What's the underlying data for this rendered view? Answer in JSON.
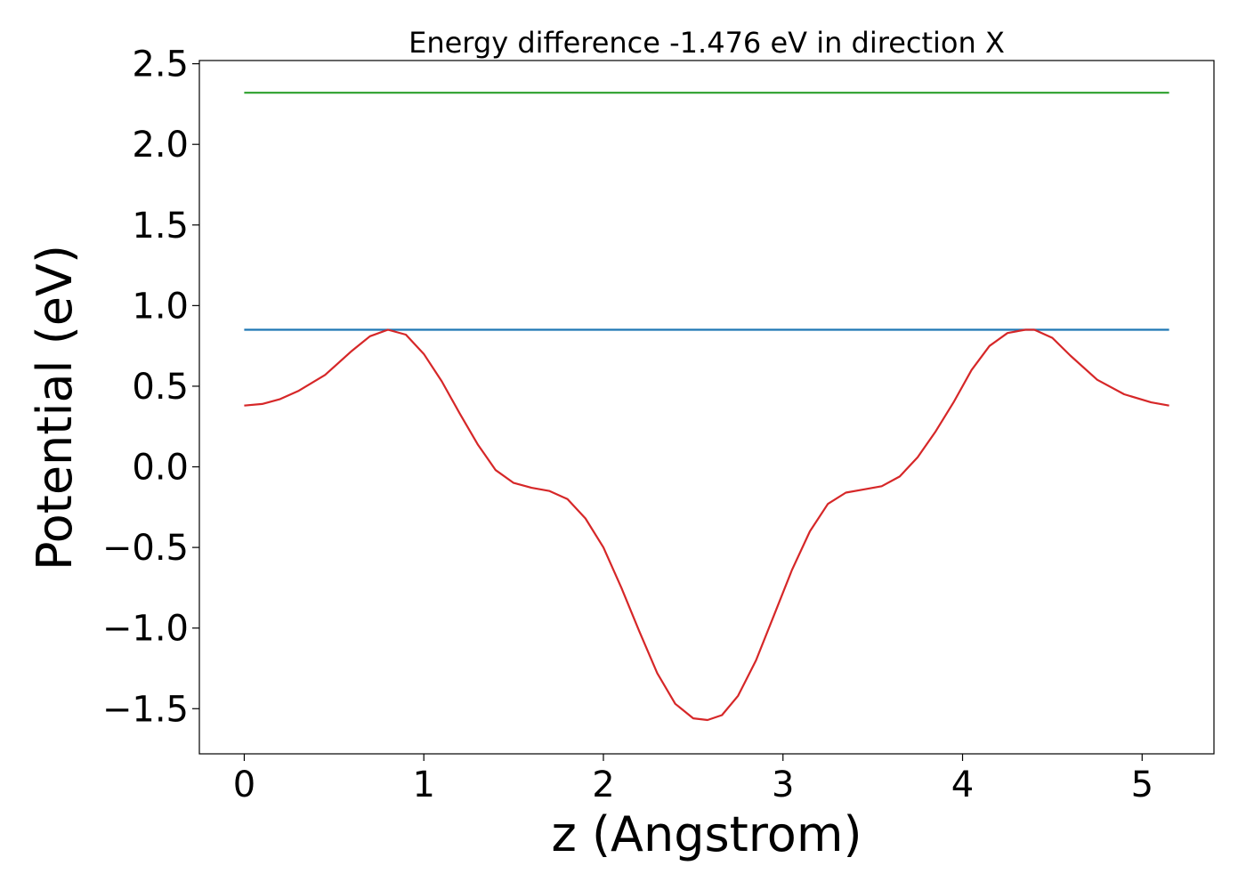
{
  "chart_data": {
    "type": "line",
    "title": "Energy difference -1.476 eV in direction X",
    "xlabel": "z (Angstrom)",
    "ylabel": "Potential (eV)",
    "xlim": [
      -0.25,
      5.4
    ],
    "ylim": [
      -1.78,
      2.52
    ],
    "xticks": [
      0,
      1,
      2,
      3,
      4,
      5
    ],
    "xtick_labels": [
      "0",
      "1",
      "2",
      "3",
      "4",
      "5"
    ],
    "yticks": [
      -1.5,
      -1.0,
      -0.5,
      0.0,
      0.5,
      1.0,
      1.5,
      2.0,
      2.5
    ],
    "ytick_labels": [
      "−1.5",
      "−1.0",
      "−0.5",
      "0.0",
      "0.5",
      "1.0",
      "1.5",
      "2.0",
      "2.5"
    ],
    "grid": false,
    "series": [
      {
        "color": "#2ca02c",
        "x": [
          0,
          5.15
        ],
        "y": [
          2.32,
          2.32
        ]
      },
      {
        "color": "#1f77b4",
        "x": [
          0,
          5.15
        ],
        "y": [
          0.85,
          0.85
        ]
      },
      {
        "color": "#d62728",
        "x": [
          0,
          0.1,
          0.2,
          0.3,
          0.45,
          0.6,
          0.7,
          0.8,
          0.9,
          1.0,
          1.1,
          1.2,
          1.3,
          1.4,
          1.5,
          1.6,
          1.7,
          1.8,
          1.9,
          2.0,
          2.1,
          2.2,
          2.3,
          2.4,
          2.5,
          2.58,
          2.66,
          2.75,
          2.85,
          2.95,
          3.05,
          3.15,
          3.25,
          3.35,
          3.45,
          3.55,
          3.65,
          3.75,
          3.85,
          3.95,
          4.05,
          4.15,
          4.25,
          4.35,
          4.4,
          4.5,
          4.6,
          4.75,
          4.9,
          5.05,
          5.15
        ],
        "y": [
          0.38,
          0.39,
          0.42,
          0.47,
          0.57,
          0.72,
          0.81,
          0.85,
          0.82,
          0.7,
          0.53,
          0.33,
          0.14,
          -0.02,
          -0.1,
          -0.13,
          -0.15,
          -0.2,
          -0.32,
          -0.5,
          -0.75,
          -1.02,
          -1.28,
          -1.47,
          -1.56,
          -1.57,
          -1.54,
          -1.42,
          -1.2,
          -0.92,
          -0.64,
          -0.4,
          -0.23,
          -0.16,
          -0.14,
          -0.12,
          -0.06,
          0.06,
          0.22,
          0.4,
          0.6,
          0.75,
          0.83,
          0.85,
          0.85,
          0.8,
          0.69,
          0.54,
          0.45,
          0.4,
          0.38
        ]
      }
    ]
  }
}
